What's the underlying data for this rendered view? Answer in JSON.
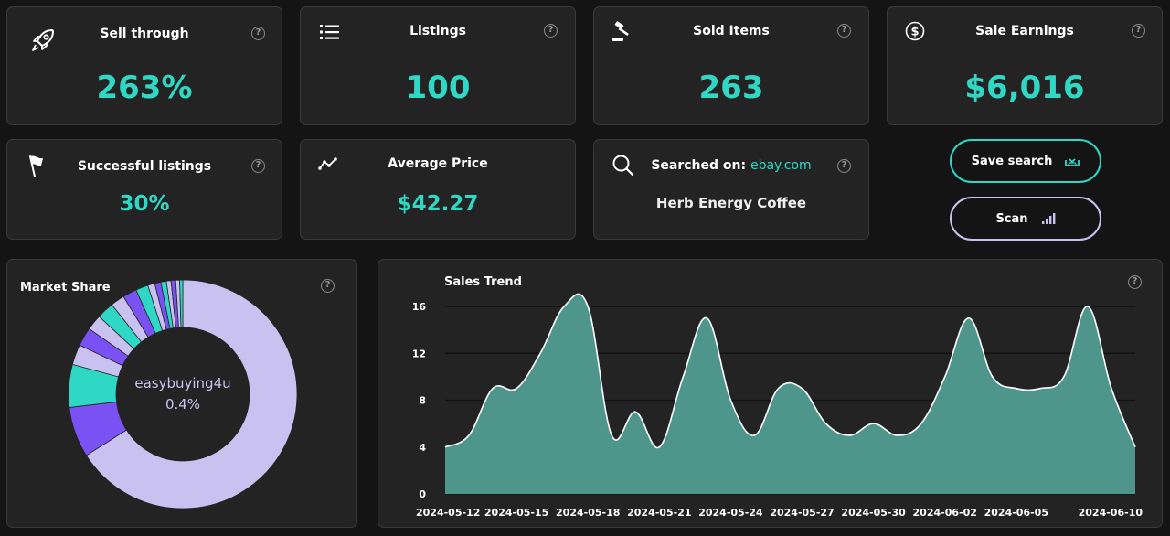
{
  "cards": {
    "sell_through": {
      "title": "Sell through",
      "value": "263%",
      "icon": "rocket-icon"
    },
    "listings": {
      "title": "Listings",
      "value": "100",
      "icon": "list-icon"
    },
    "sold_items": {
      "title": "Sold Items",
      "value": "263",
      "icon": "gavel-icon"
    },
    "sale_earnings": {
      "title": "Sale Earnings",
      "value": "$6,016",
      "icon": "dollar-circle-icon"
    },
    "successful_listings": {
      "title": "Successful listings",
      "value": "30%",
      "icon": "flag-icon"
    },
    "average_price": {
      "title": "Average Price",
      "value": "$42.27",
      "icon": "trend-icon"
    },
    "searched_on": {
      "title": "Searched on:",
      "site": "ebay.com",
      "query": "Herb Energy Coffee",
      "icon": "search-icon"
    }
  },
  "help_glyph": "?",
  "buttons": {
    "save_search": {
      "label": "Save search",
      "icon": "inbox-download-icon"
    },
    "scan": {
      "label": "Scan",
      "icon": "signal-bars-icon"
    }
  },
  "market_share": {
    "title": "Market Share",
    "center_label": "easybuying4u",
    "center_value": "0.4%"
  },
  "chart_data": {
    "type": "area",
    "title": "Sales Trend",
    "xlabel": "",
    "ylabel": "",
    "ylim": [
      0,
      16
    ],
    "yticks": [
      0,
      4,
      8,
      12,
      16
    ],
    "x": [
      "2024-05-12",
      "2024-05-13",
      "2024-05-14",
      "2024-05-15",
      "2024-05-16",
      "2024-05-17",
      "2024-05-18",
      "2024-05-19",
      "2024-05-20",
      "2024-05-21",
      "2024-05-22",
      "2024-05-23",
      "2024-05-24",
      "2024-05-25",
      "2024-05-26",
      "2024-05-27",
      "2024-05-28",
      "2024-05-29",
      "2024-05-30",
      "2024-05-31",
      "2024-06-01",
      "2024-06-02",
      "2024-06-03",
      "2024-06-04",
      "2024-06-05",
      "2024-06-06",
      "2024-06-07",
      "2024-06-08",
      "2024-06-09",
      "2024-06-10"
    ],
    "values": [
      4,
      5,
      9,
      9,
      12,
      16,
      16,
      5,
      7,
      4,
      10,
      15,
      8,
      5,
      9,
      9,
      6,
      5,
      6,
      5,
      6,
      10,
      15,
      10,
      9,
      9,
      10,
      16,
      9,
      4
    ],
    "xtick_labels": [
      "2024-05-12",
      "2024-05-15",
      "2024-05-18",
      "2024-05-21",
      "2024-05-24",
      "2024-05-27",
      "2024-05-30",
      "2024-06-02",
      "2024-06-05",
      "2024-06-10"
    ],
    "grid": true,
    "fill_color": "#4e968b",
    "line_color": "#ffffff"
  },
  "pie_data": {
    "type": "pie",
    "slices": [
      {
        "value": 60.0,
        "color": "#c9c1f0"
      },
      {
        "value": 6.5,
        "color": "#7a52f4"
      },
      {
        "value": 5.5,
        "color": "#2fd8c5"
      },
      {
        "value": 2.6,
        "color": "#c9c1f0"
      },
      {
        "value": 2.4,
        "color": "#7a52f4"
      },
      {
        "value": 2.0,
        "color": "#c9c1f0"
      },
      {
        "value": 2.2,
        "color": "#2fd8c5"
      },
      {
        "value": 1.8,
        "color": "#c9c1f0"
      },
      {
        "value": 1.8,
        "color": "#7a52f4"
      },
      {
        "value": 1.6,
        "color": "#2fd8c5"
      },
      {
        "value": 0.9,
        "color": "#c9c1f0"
      },
      {
        "value": 0.8,
        "color": "#7a52f4"
      },
      {
        "value": 0.7,
        "color": "#2fd8c5"
      },
      {
        "value": 0.6,
        "color": "#c9c1f0"
      },
      {
        "value": 0.6,
        "color": "#7a52f4"
      },
      {
        "value": 0.5,
        "color": "#c9c1f0"
      },
      {
        "value": 0.4,
        "color": "#2fd8c5"
      }
    ]
  },
  "colors": {
    "accent": "#2fd8c5",
    "purple": "#7a52f4",
    "lavender": "#c9c1f0"
  }
}
